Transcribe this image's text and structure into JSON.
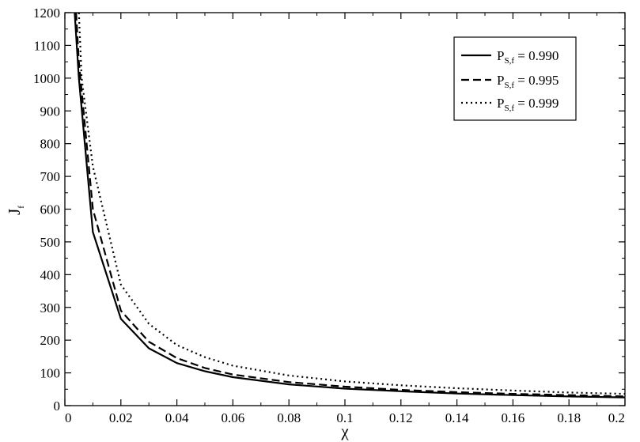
{
  "chart_data": {
    "type": "line",
    "title": "",
    "xlabel": "χ",
    "ylabel_main": "J",
    "ylabel_sub": "f",
    "xlim": [
      0,
      0.2
    ],
    "ylim": [
      0,
      1200
    ],
    "grid": false,
    "legend_position": "top-right",
    "x_ticks": [
      0,
      0.02,
      0.04,
      0.06,
      0.08,
      0.1,
      0.12,
      0.14,
      0.16,
      0.18,
      0.2
    ],
    "x_tick_labels": [
      "0",
      "0.02",
      "0.04",
      "0.06",
      "0.08",
      "0.1",
      "0.12",
      "0.14",
      "0.16",
      "0.18",
      "0.2"
    ],
    "y_ticks": [
      0,
      100,
      200,
      300,
      400,
      500,
      600,
      700,
      800,
      900,
      1000,
      1100,
      1200
    ],
    "y_tick_labels": [
      "0",
      "100",
      "200",
      "300",
      "400",
      "500",
      "600",
      "700",
      "800",
      "900",
      "1000",
      "1100",
      "1200"
    ],
    "series": [
      {
        "name": "P_S,f = 0.990",
        "legend_prefix": "P",
        "legend_sub": "S,f",
        "legend_value": " = 0.990",
        "style": "solid",
        "x": [
          0.0035,
          0.005,
          0.01,
          0.02,
          0.03,
          0.04,
          0.05,
          0.06,
          0.08,
          0.1,
          0.12,
          0.14,
          0.16,
          0.18,
          0.2
        ],
        "y": [
          1200,
          1000,
          530,
          265,
          175,
          130,
          105,
          87,
          65,
          52,
          44,
          37,
          32,
          28,
          25
        ]
      },
      {
        "name": "P_S,f = 0.995",
        "legend_prefix": "P",
        "legend_sub": "S,f",
        "legend_value": " = 0.995",
        "style": "dashed",
        "x": [
          0.004,
          0.005,
          0.01,
          0.02,
          0.03,
          0.04,
          0.05,
          0.06,
          0.08,
          0.1,
          0.12,
          0.14,
          0.16,
          0.18,
          0.2
        ],
        "y": [
          1200,
          1050,
          600,
          290,
          195,
          145,
          115,
          95,
          72,
          58,
          48,
          41,
          36,
          32,
          28
        ]
      },
      {
        "name": "P_S,f = 0.999",
        "legend_prefix": "P",
        "legend_sub": "S,f",
        "legend_value": " = 0.999",
        "style": "dotted",
        "x": [
          0.005,
          0.006,
          0.01,
          0.02,
          0.03,
          0.04,
          0.05,
          0.06,
          0.08,
          0.1,
          0.12,
          0.14,
          0.16,
          0.18,
          0.2
        ],
        "y": [
          1200,
          1000,
          730,
          370,
          250,
          185,
          148,
          122,
          92,
          74,
          62,
          53,
          46,
          40,
          36
        ]
      }
    ]
  }
}
